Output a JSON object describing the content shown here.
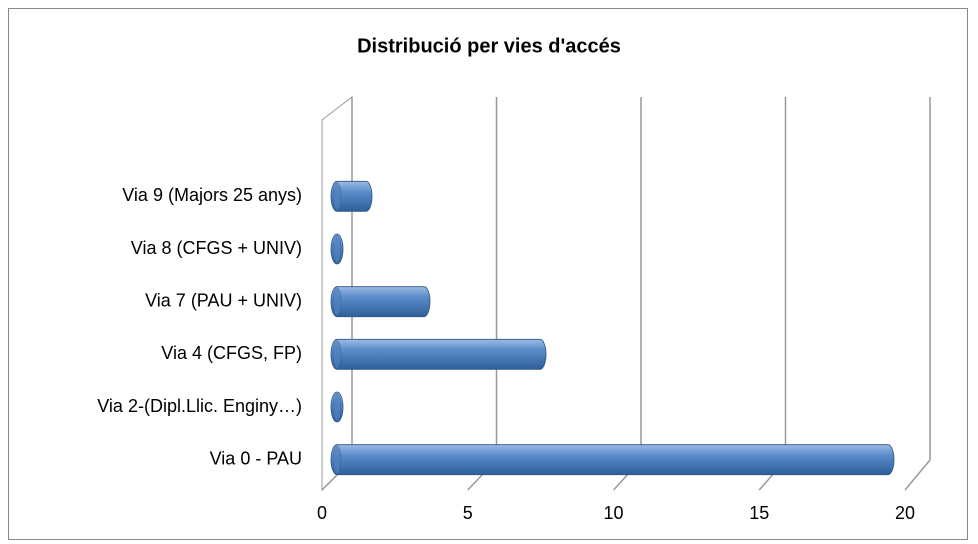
{
  "chart_data": {
    "type": "bar",
    "orientation": "horizontal",
    "title": "Distribució per vies d'accés",
    "categories": [
      "Via 0 - PAU",
      "Via 2-(Dipl.Llic. Enginy…)",
      "Via 4 (CFGS, FP)",
      "Via 7 (PAU + UNIV)",
      "Via 8 (CFGS + UNIV)",
      "Via 9 (Majors 25 anys)"
    ],
    "values": [
      19,
      0,
      7,
      3,
      0,
      1
    ],
    "color": "#4f81bd",
    "xlim": [
      0,
      20
    ],
    "xticks": [
      0,
      5,
      10,
      15,
      20
    ],
    "grid": true
  }
}
